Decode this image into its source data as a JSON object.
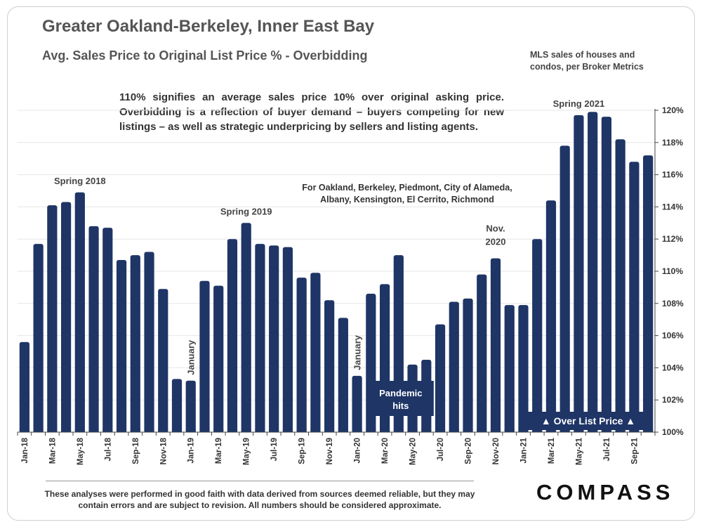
{
  "header": {
    "title": "Greater Oakland-Berkeley, Inner East Bay",
    "subtitle": "Avg. Sales Price to Original List Price % - Overbidding",
    "source": "MLS sales of houses and condos, per Broker Metrics"
  },
  "description": "110% signifies an average sales price 10% over original asking price. Overbidding is a reflection of buyer demand – buyers competing for new listings – as well as strategic underpricing by sellers and listing agents.",
  "area_note": "For Oakland, Berkeley, Piedmont, City of Alameda, Albany, Kensington, El Cerrito, Richmond",
  "footer": {
    "disclaimer": "These analyses were performed in good faith with data derived from sources deemed reliable, but they may contain errors and are subject to revision. All numbers should be considered approximate.",
    "logo": "COMPASS"
  },
  "colors": {
    "bar": "#1f3566",
    "grid": "#e6e6e6",
    "axis": "#444444",
    "box": "#1f3566"
  },
  "chart_data": {
    "type": "bar",
    "title": "Avg. Sales Price to Original List Price % - Overbidding",
    "ylim": [
      100,
      120
    ],
    "yticks": [
      100,
      102,
      104,
      106,
      108,
      110,
      112,
      114,
      116,
      118,
      120
    ],
    "ytick_labels": [
      "100%",
      "102%",
      "104%",
      "106%",
      "108%",
      "110%",
      "112%",
      "114%",
      "116%",
      "118%",
      "120%"
    ],
    "grid": true,
    "categories": [
      "Jan-18",
      "Feb-18",
      "Mar-18",
      "Apr-18",
      "May-18",
      "Jun-18",
      "Jul-18",
      "Aug-18",
      "Sep-18",
      "Oct-18",
      "Nov-18",
      "Dec-18",
      "Jan-19",
      "Feb-19",
      "Mar-19",
      "Apr-19",
      "May-19",
      "Jun-19",
      "Jul-19",
      "Aug-19",
      "Sep-19",
      "Oct-19",
      "Nov-19",
      "Dec-19",
      "Jan-20",
      "Feb-20",
      "Mar-20",
      "Apr-20",
      "May-20",
      "Jun-20",
      "Jul-20",
      "Aug-20",
      "Sep-20",
      "Oct-20",
      "Nov-20",
      "Dec-20",
      "Jan-21",
      "Feb-21",
      "Mar-21",
      "Apr-21",
      "May-21",
      "Jun-21",
      "Jul-21",
      "Aug-21",
      "Sep-21",
      "Oct-21"
    ],
    "xtick_labels": [
      "Jan-18",
      "",
      "Mar-18",
      "",
      "May-18",
      "",
      "Jul-18",
      "",
      "Sep-18",
      "",
      "Nov-18",
      "",
      "Jan-19",
      "",
      "Mar-19",
      "",
      "May-19",
      "",
      "Jul-19",
      "",
      "Sep-19",
      "",
      "Nov-19",
      "",
      "Jan-20",
      "",
      "Mar-20",
      "",
      "May-20",
      "",
      "Jul-20",
      "",
      "Sep-20",
      "",
      "Nov-20",
      "",
      "Jan-21",
      "",
      "Mar-21",
      "",
      "May-21",
      "",
      "Jul-21",
      "",
      "Sep-21",
      ""
    ],
    "values": [
      105.6,
      111.7,
      114.1,
      114.3,
      114.9,
      112.8,
      112.7,
      110.7,
      111.0,
      111.2,
      108.9,
      103.3,
      103.2,
      109.4,
      109.1,
      112.0,
      113.0,
      111.7,
      111.6,
      111.5,
      109.6,
      109.9,
      108.2,
      107.1,
      103.5,
      108.6,
      109.2,
      111.0,
      104.2,
      104.5,
      106.7,
      108.1,
      108.3,
      109.8,
      110.8,
      107.9,
      107.9,
      112.0,
      114.4,
      117.8,
      119.7,
      119.9,
      119.6,
      118.2,
      116.8,
      117.2
    ],
    "annotations": [
      {
        "id": "spring-2018",
        "text": "Spring 2018",
        "index": 4
      },
      {
        "id": "spring-2019",
        "text": "Spring 2019",
        "index": 16
      },
      {
        "id": "january-2019",
        "text": "January",
        "index": 12,
        "vertical": true
      },
      {
        "id": "january-2020",
        "text": "January",
        "index": 24,
        "vertical": true
      },
      {
        "id": "nov-2020",
        "lines": [
          "Nov.",
          "2020"
        ],
        "index": 34
      },
      {
        "id": "spring-2021",
        "text": "Spring 2021",
        "index": 40
      }
    ],
    "callouts": {
      "pandemic": [
        "Pandemic",
        "hits"
      ],
      "over_list": "▲  Over List Price  ▲"
    }
  }
}
